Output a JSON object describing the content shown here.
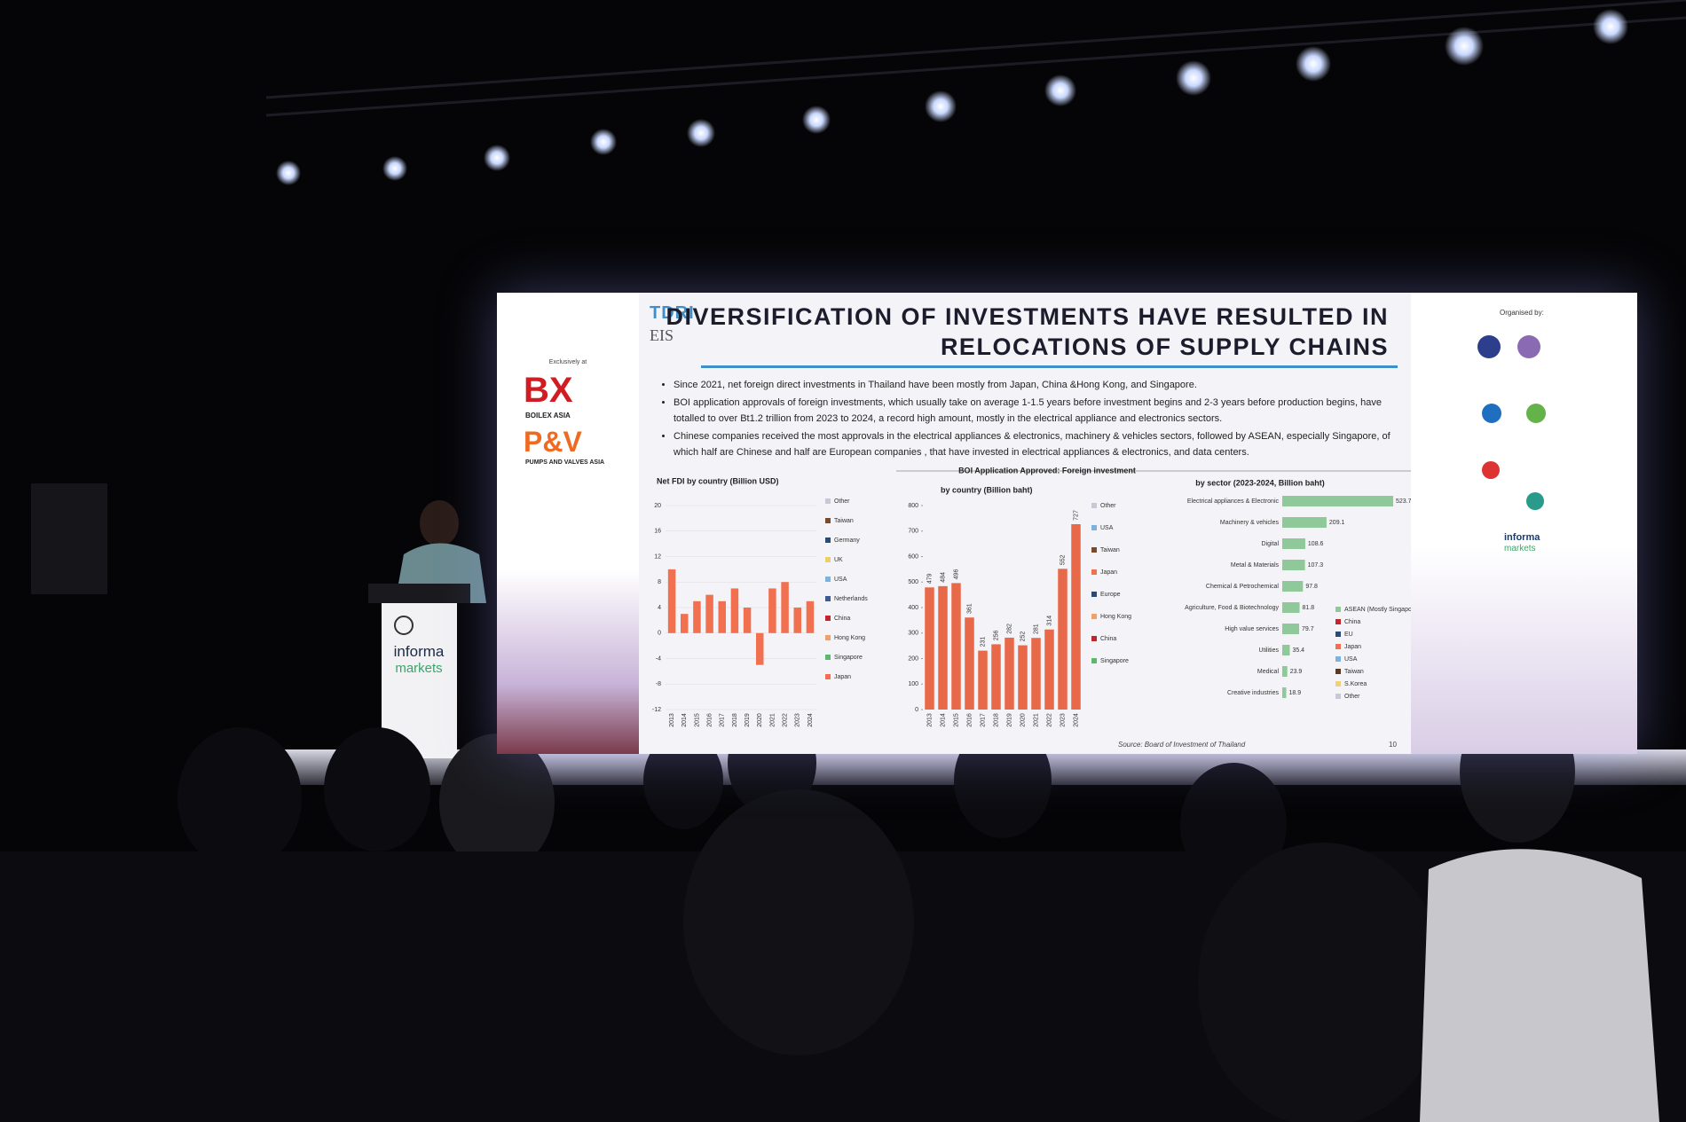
{
  "slide": {
    "brand": "TDRI",
    "brand2": "EIS",
    "title_line1": "DIVERSIFICATION OF INVESTMENTS HAVE RESULTED IN",
    "title_line2": "RELOCATIONS OF SUPPLY CHAINS",
    "bullets": [
      "Since 2021, net foreign direct investments in Thailand have been mostly from Japan, China &Hong Kong, and Singapore.",
      "BOI application approvals of foreign investments, which usually take on average 1-1.5 years before investment begins and 2-3 years before production begins, have totalled to over Bt1.2 trillion from 2023 to 2024, a record high amount, mostly in the electrical appliance and electronics sectors.",
      "Chinese companies received the most approvals in the electrical appliances & electronics, machinery & vehicles sectors, followed by ASEAN, especially Singapore, of which half are Chinese and half are European companies , that have invested in electrical appliances & electronics, and data centers."
    ],
    "left_logos": {
      "exclusively": "Exclusively at",
      "bx": "BX",
      "bx_name": "BOILEX ASIA",
      "pv": "P&V",
      "pv_name": "PUMPS AND VALVES ASIA"
    },
    "organised_by": "Organised by:",
    "right_logo": {
      "line1": "informa",
      "line2": "markets"
    },
    "source": "Source: Board of Investment of Thailand",
    "page": "10",
    "fdi_chart": {
      "title": "Net FDI by country (Billion USD)",
      "years": [
        "2013",
        "2014",
        "2015",
        "2016",
        "2017",
        "2018",
        "2019",
        "2020",
        "2021",
        "2022",
        "2023",
        "2024"
      ],
      "values": [
        10,
        3,
        5,
        6,
        5,
        7,
        4,
        -5,
        7,
        8,
        4,
        5
      ],
      "ylim": [
        -12,
        20
      ],
      "yticks": [
        20,
        16,
        12,
        8,
        4,
        0,
        -4,
        -8,
        -12
      ],
      "legend": [
        "Other",
        "Taiwan",
        "Germany",
        "UK",
        "USA",
        "Netherlands",
        "China",
        "Hong Kong",
        "Singapore",
        "Japan"
      ]
    },
    "boi_title": "BOI Application Approved: Foreign investment",
    "country_chart": {
      "title": "by country (Billion baht)",
      "years": [
        "2013",
        "2014",
        "2015",
        "2016",
        "2017",
        "2018",
        "2019",
        "2020",
        "2021",
        "2022",
        "2023",
        "2024"
      ],
      "values": [
        479,
        484,
        496,
        361,
        231,
        256,
        282,
        252,
        281,
        314,
        552,
        727
      ],
      "ylim": [
        0,
        800
      ],
      "yticks": [
        0,
        100,
        200,
        300,
        400,
        500,
        600,
        700,
        800
      ],
      "legend": [
        "Other",
        "USA",
        "Taiwan",
        "Japan",
        "Europe",
        "Hong Kong",
        "China",
        "Singapore"
      ]
    },
    "sector_chart": {
      "title": "by sector (2023-2024, Billion baht)",
      "sectors": [
        "Electrical appliances & Electronic",
        "Machinery & vehicles",
        "Digital",
        "Metal & Materials",
        "Chemical & Petrochemical",
        "Agriculture, Food & Biotechnology",
        "High value services",
        "Utilities",
        "Medical",
        "Creative industries"
      ],
      "values": [
        523.7,
        209.1,
        108.6,
        107.3,
        97.8,
        81.8,
        79.7,
        35.4,
        23.9,
        18.9
      ],
      "legend": [
        "ASEAN (Mostly Singapore)",
        "China",
        "EU",
        "Japan",
        "USA",
        "Taiwan",
        "S.Korea",
        "Other"
      ]
    }
  },
  "podium": {
    "line1": "informa",
    "line2": "markets"
  }
}
